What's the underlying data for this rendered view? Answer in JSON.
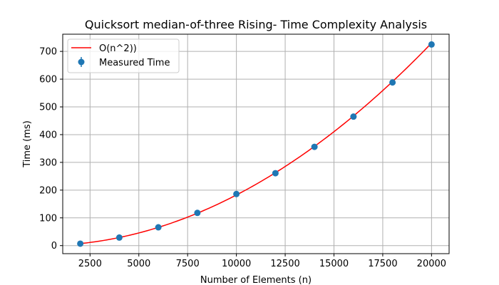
{
  "chart_data": {
    "type": "scatter",
    "title": "Quicksort median-of-three Rising- Time Complexity Analysis",
    "xlabel": "Number of Elements (n)",
    "ylabel": "Time (ms)",
    "xlim": [
      1100,
      20900
    ],
    "ylim": [
      -29,
      762
    ],
    "grid": true,
    "legend_position": "top-left",
    "x_ticks": [
      2500,
      5000,
      7500,
      10000,
      12500,
      15000,
      17500,
      20000
    ],
    "y_ticks": [
      0,
      100,
      200,
      300,
      400,
      500,
      600,
      700
    ],
    "series": [
      {
        "name": "O(n^2))",
        "kind": "line",
        "color": "#ff0000",
        "model": "quadratic",
        "x": [
          2000,
          4000,
          6000,
          8000,
          10000,
          12000,
          14000,
          16000,
          18000,
          20000
        ],
        "values": [
          7.3,
          29.2,
          65.7,
          116.8,
          182.5,
          262.8,
          357.7,
          467.2,
          591.3,
          730.0
        ]
      },
      {
        "name": "Measured Time",
        "kind": "errorbar",
        "color": "#1f77b4",
        "x": [
          2000,
          4000,
          6000,
          8000,
          10000,
          12000,
          14000,
          16000,
          18000,
          20000
        ],
        "values": [
          7,
          29,
          66,
          118,
          186,
          261,
          356,
          465,
          588,
          725
        ]
      }
    ]
  }
}
